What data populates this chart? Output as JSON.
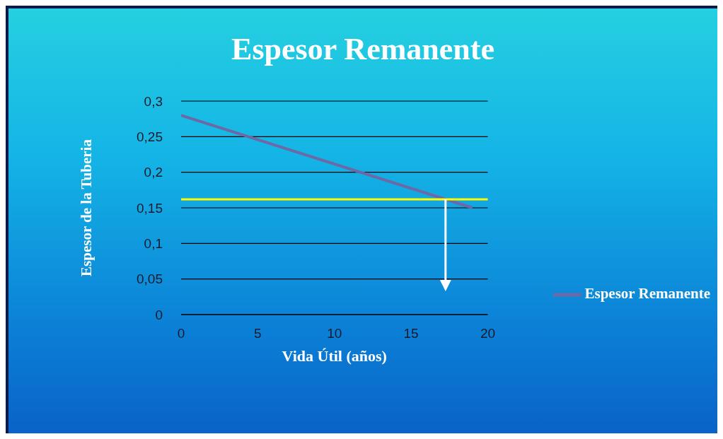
{
  "chart_data": {
    "type": "line",
    "title": "Espesor  Remanente",
    "xlabel": "Vida Útil (años)",
    "ylabel": "Espesor de la Tuberia",
    "series": [
      {
        "name": "Espesor  Remanente",
        "color": "#6b6aa6",
        "x": [
          0,
          19
        ],
        "values": [
          0.28,
          0.15
        ]
      }
    ],
    "xlim": [
      0,
      20
    ],
    "xticks": [
      0,
      5,
      10,
      15,
      20
    ],
    "ylim": [
      0,
      0.3
    ],
    "yticks": [
      0,
      {
        "value": 0.05,
        "label": "0,05"
      },
      {
        "value": 0.1,
        "label": "0,1"
      },
      {
        "value": 0.15,
        "label": "0,15"
      },
      {
        "value": 0.2,
        "label": "0,2"
      },
      {
        "value": 0.25,
        "label": "0,25"
      },
      {
        "value": 0.3,
        "label": "0,3"
      }
    ],
    "ref_lines": [
      {
        "axis": "y",
        "value": 0.162,
        "color": "#ffff00"
      }
    ],
    "grid": "y",
    "legend": "right",
    "marker": "none"
  }
}
